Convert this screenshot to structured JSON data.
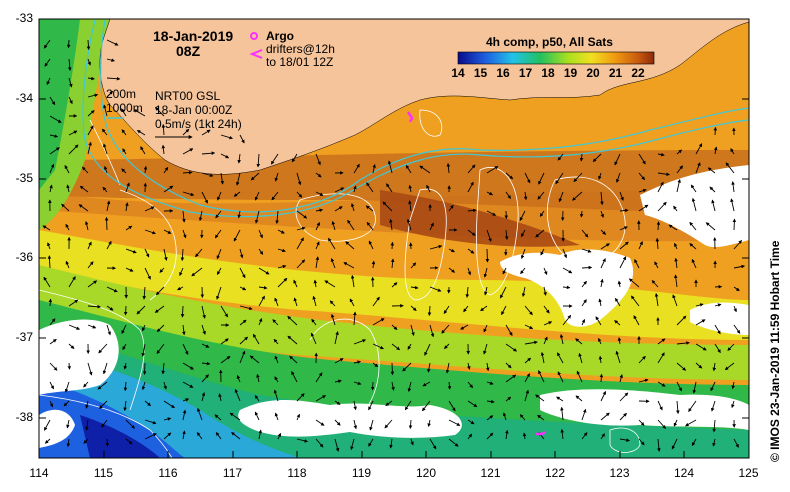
{
  "map": {
    "date": "18-Jan-2019",
    "time": "08Z",
    "argo_label": "Argo",
    "drifters_label_1": "drifters@12h",
    "drifters_label_2": "to 18/01 12Z",
    "depth_200": "200m",
    "depth_1000": "1000m",
    "altimetry_label": "NRT00 GSL",
    "altimetry_time": "18-Jan 00:00Z",
    "vector_scale": "0.5m/s (1kt 24h)",
    "colorbar_title": "4h comp, p50, All Sats",
    "colorbar_ticks": [
      "14",
      "15",
      "16",
      "17",
      "18",
      "19",
      "20",
      "21",
      "22"
    ],
    "credit": "© IMOS 23-Jan-2019 11:59 Hobart Time",
    "lon_ticks": [
      "114",
      "115",
      "116",
      "117",
      "118",
      "119",
      "120",
      "121",
      "122",
      "123",
      "124",
      "125"
    ],
    "lat_ticks": [
      "-33",
      "-34",
      "-35",
      "-36",
      "-37",
      "-38"
    ],
    "colors": {
      "land": "#f5c49a",
      "cyan_contour": "#40c8d8",
      "argo": "#ff30ff",
      "frame": "#000000"
    }
  }
}
